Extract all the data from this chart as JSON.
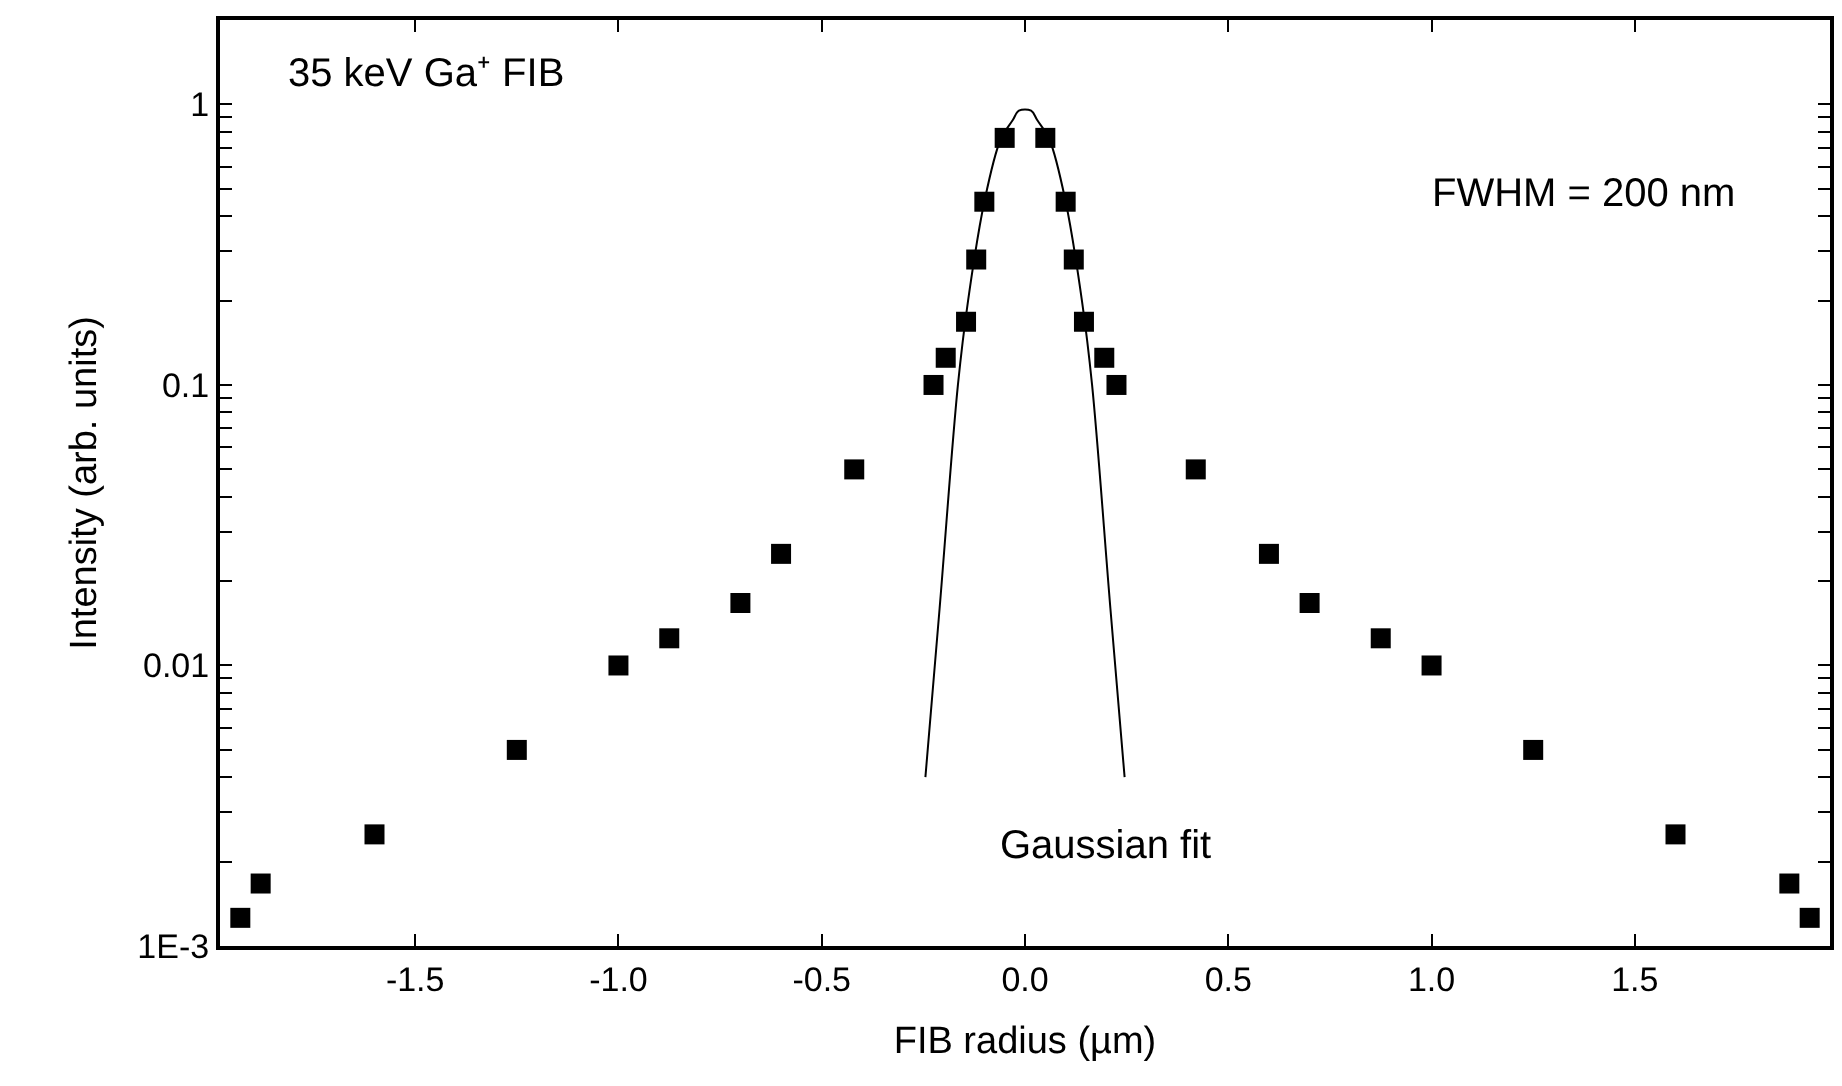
{
  "chart_data": {
    "type": "scatter",
    "xlabel": "FIB radius (µm)",
    "ylabel": "Intensity (arb. units)",
    "log": "y",
    "xlim": [
      -1.98,
      1.98
    ],
    "ylim": [
      0.001,
      2
    ],
    "xticks": [
      {
        "value": -1.5,
        "label": "-1.5"
      },
      {
        "value": -1.0,
        "label": "-1.0"
      },
      {
        "value": -0.5,
        "label": "-0.5"
      },
      {
        "value": 0,
        "label": "0.0"
      },
      {
        "value": 0.5,
        "label": "0.5"
      },
      {
        "value": 1.0,
        "label": "1.0"
      },
      {
        "value": 1.5,
        "label": "1.5"
      }
    ],
    "yticks": [
      {
        "value": 0.001,
        "label": "1E-3"
      },
      0.01,
      0.1,
      1,
      {
        "value": 0.002,
        "label": null
      },
      {
        "value": 0.003,
        "label": null
      },
      {
        "value": 0.004,
        "label": null
      },
      {
        "value": 0.005,
        "label": null
      },
      {
        "value": 0.006,
        "label": null
      },
      {
        "value": 0.007,
        "label": null
      },
      {
        "value": 0.008,
        "label": null
      },
      {
        "value": 0.009,
        "label": null
      },
      {
        "value": 0.02,
        "label": null
      },
      {
        "value": 0.03,
        "label": null
      },
      {
        "value": 0.04,
        "label": null
      },
      {
        "value": 0.05,
        "label": null
      },
      {
        "value": 0.06,
        "label": null
      },
      {
        "value": 0.07,
        "label": null
      },
      {
        "value": 0.08,
        "label": null
      },
      {
        "value": 0.09,
        "label": null
      },
      {
        "value": 0.2,
        "label": null
      },
      {
        "value": 0.3,
        "label": null
      },
      {
        "value": 0.4,
        "label": null
      },
      {
        "value": 0.5,
        "label": null
      },
      {
        "value": 0.6,
        "label": null
      },
      {
        "value": 0.7,
        "label": null
      },
      {
        "value": 0.8,
        "label": null
      },
      {
        "value": 0.9,
        "label": null
      },
      {
        "value": 2,
        "label": null
      }
    ],
    "annotations": [
      "35 keV Ga⁺ FIB",
      "FWHM = 200 nm",
      "Gaussian fit"
    ],
    "series": [
      {
        "color": "#000000",
        "marker": "square",
        "x": [
          -1.93,
          -1.88,
          -1.6,
          -1.25,
          -1.0,
          -0.875,
          -0.7,
          -0.6,
          -0.42,
          -0.225,
          -0.195,
          -0.145,
          -0.12,
          -0.1,
          -0.05,
          0.05,
          0.1,
          0.12,
          0.145,
          0.195,
          0.225,
          0.42,
          0.6,
          0.7,
          0.875,
          1.0,
          1.25,
          1.6,
          1.88,
          1.93
        ],
        "values": [
          0.00126,
          0.00167,
          0.0025,
          0.005,
          0.01,
          0.0125,
          0.0167,
          0.025,
          0.05,
          0.1,
          0.125,
          0.168,
          0.28,
          0.45,
          0.76,
          0.76,
          0.45,
          0.28,
          0.168,
          0.125,
          0.1,
          0.05,
          0.025,
          0.0167,
          0.0125,
          0.01,
          0.005,
          0.0025,
          0.00167,
          0.00126
        ]
      },
      {
        "type": "line",
        "color": "#000000",
        "marker": "none",
        "x": [
          -0.245,
          -0.21,
          -0.165,
          -0.14,
          -0.1,
          -0.06,
          -0.03,
          -0.015,
          0.015,
          0.03,
          0.06,
          0.1,
          0.14,
          0.165,
          0.21,
          0.245
        ],
        "values": [
          0.004,
          0.016,
          0.1,
          0.2,
          0.45,
          0.75,
          0.88,
          0.95,
          0.95,
          0.88,
          0.75,
          0.45,
          0.2,
          0.1,
          0.016,
          0.004
        ]
      }
    ]
  }
}
